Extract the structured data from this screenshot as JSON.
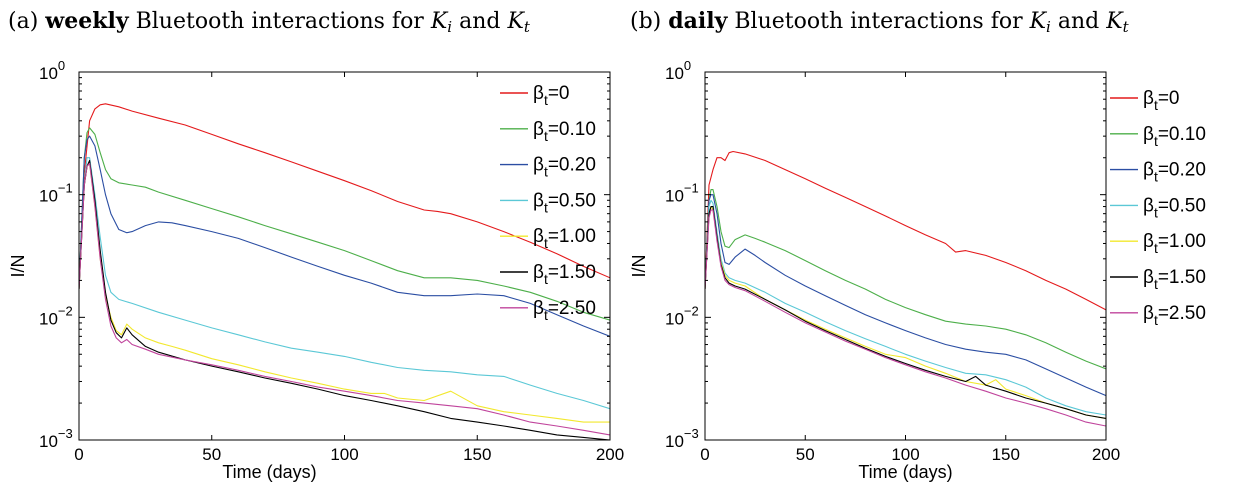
{
  "chart_data": [
    {
      "type": "line",
      "title": {
        "prefix": "(a) ",
        "bold": "weekly",
        "rest": " Bluetooth interactions for ",
        "k1": "K",
        "k1_sub": "i",
        "and": " and ",
        "k2": "K",
        "k2_sub": "t"
      },
      "xlabel": "Time (days)",
      "ylabel": "I/N",
      "xlim": [
        0,
        200
      ],
      "ylim": [
        0.001,
        1
      ],
      "yscale": "log",
      "xticks": [
        "0",
        "50",
        "100",
        "150",
        "200"
      ],
      "yticks": [
        {
          "base": "10",
          "exp": "0"
        },
        {
          "base": "10",
          "exp": "−1"
        },
        {
          "base": "10",
          "exp": "−2"
        },
        {
          "base": "10",
          "exp": "−3"
        }
      ],
      "grid": false,
      "legend_position": "outside-right",
      "series": [
        {
          "name": "β",
          "sub": "t",
          "value": "=0",
          "color": "#e41a1c",
          "x": [
            0,
            2,
            4,
            6,
            8,
            10,
            15,
            20,
            30,
            40,
            50,
            60,
            70,
            80,
            90,
            100,
            110,
            120,
            130,
            135,
            140,
            150,
            160,
            170,
            180,
            190,
            200
          ],
          "y": [
            0.017,
            0.15,
            0.4,
            0.5,
            0.54,
            0.55,
            0.52,
            0.48,
            0.42,
            0.37,
            0.31,
            0.26,
            0.22,
            0.185,
            0.155,
            0.13,
            0.108,
            0.088,
            0.075,
            0.073,
            0.07,
            0.06,
            0.05,
            0.041,
            0.033,
            0.026,
            0.021
          ]
        },
        {
          "name": "β",
          "sub": "t",
          "value": "=0.10",
          "color": "#4daf4a",
          "x": [
            0,
            2,
            3,
            4,
            6,
            8,
            10,
            12,
            15,
            20,
            25,
            30,
            40,
            50,
            60,
            70,
            80,
            90,
            100,
            110,
            120,
            130,
            140,
            150,
            160,
            170,
            180,
            190,
            200
          ],
          "y": [
            0.017,
            0.2,
            0.32,
            0.35,
            0.31,
            0.22,
            0.16,
            0.135,
            0.125,
            0.12,
            0.115,
            0.105,
            0.09,
            0.077,
            0.066,
            0.056,
            0.048,
            0.041,
            0.035,
            0.029,
            0.024,
            0.021,
            0.021,
            0.02,
            0.018,
            0.016,
            0.0135,
            0.011,
            0.0095
          ]
        },
        {
          "name": "β",
          "sub": "t",
          "value": "=0.20",
          "color": "#2b4ea3",
          "x": [
            0,
            2,
            3,
            4,
            6,
            8,
            10,
            12,
            15,
            18,
            20,
            25,
            30,
            35,
            40,
            50,
            60,
            70,
            80,
            90,
            100,
            110,
            120,
            130,
            140,
            150,
            160,
            170,
            180,
            190,
            200
          ],
          "y": [
            0.017,
            0.2,
            0.28,
            0.3,
            0.25,
            0.16,
            0.1,
            0.07,
            0.052,
            0.049,
            0.05,
            0.056,
            0.06,
            0.059,
            0.056,
            0.05,
            0.044,
            0.037,
            0.031,
            0.026,
            0.022,
            0.019,
            0.016,
            0.015,
            0.015,
            0.0155,
            0.015,
            0.013,
            0.0105,
            0.0085,
            0.007
          ]
        },
        {
          "name": "β",
          "sub": "t",
          "value": "=0.50",
          "color": "#5bc8d6",
          "x": [
            0,
            2,
            3,
            4,
            6,
            8,
            10,
            12,
            15,
            20,
            30,
            40,
            50,
            60,
            70,
            80,
            90,
            100,
            110,
            120,
            130,
            140,
            150,
            160,
            170,
            180,
            190,
            200
          ],
          "y": [
            0.017,
            0.12,
            0.2,
            0.2,
            0.1,
            0.045,
            0.022,
            0.016,
            0.014,
            0.013,
            0.011,
            0.0095,
            0.0082,
            0.0072,
            0.0063,
            0.0056,
            0.0052,
            0.0048,
            0.0043,
            0.0039,
            0.0037,
            0.0036,
            0.0034,
            0.0033,
            0.0028,
            0.0024,
            0.0021,
            0.0018
          ]
        },
        {
          "name": "β",
          "sub": "t",
          "value": "=1.00",
          "color": "#f2e82e",
          "x": [
            0,
            2,
            3,
            4,
            6,
            8,
            10,
            12,
            14,
            16,
            18,
            20,
            25,
            30,
            35,
            40,
            50,
            60,
            70,
            80,
            90,
            100,
            110,
            115,
            120,
            130,
            140,
            150,
            160,
            170,
            180,
            190,
            200
          ],
          "y": [
            0.017,
            0.12,
            0.17,
            0.18,
            0.08,
            0.03,
            0.015,
            0.01,
            0.0078,
            0.0072,
            0.0088,
            0.008,
            0.0068,
            0.0062,
            0.0058,
            0.0054,
            0.0046,
            0.0041,
            0.0036,
            0.0032,
            0.0029,
            0.0026,
            0.0024,
            0.0024,
            0.0022,
            0.0021,
            0.0025,
            0.0019,
            0.0017,
            0.0016,
            0.0015,
            0.0014,
            0.0014
          ]
        },
        {
          "name": "β",
          "sub": "t",
          "value": "=1.50",
          "color": "#000000",
          "x": [
            0,
            2,
            3,
            4,
            6,
            8,
            10,
            12,
            14,
            16,
            18,
            20,
            25,
            30,
            40,
            50,
            60,
            70,
            80,
            90,
            100,
            110,
            120,
            130,
            140,
            150,
            160,
            170,
            180,
            190,
            200
          ],
          "y": [
            0.017,
            0.12,
            0.17,
            0.19,
            0.09,
            0.035,
            0.016,
            0.0095,
            0.0075,
            0.0068,
            0.0082,
            0.0072,
            0.0058,
            0.0052,
            0.0045,
            0.004,
            0.0036,
            0.0032,
            0.0029,
            0.0026,
            0.0023,
            0.0021,
            0.0019,
            0.0017,
            0.0015,
            0.0014,
            0.0013,
            0.0012,
            0.0011,
            0.00105,
            0.001
          ]
        },
        {
          "name": "β",
          "sub": "t",
          "value": "=2.50",
          "color": "#c0449c",
          "x": [
            0,
            2,
            3,
            4,
            6,
            8,
            10,
            12,
            14,
            16,
            18,
            20,
            25,
            30,
            40,
            50,
            60,
            70,
            80,
            90,
            100,
            110,
            120,
            130,
            140,
            150,
            160,
            170,
            180,
            190,
            200
          ],
          "y": [
            0.017,
            0.12,
            0.17,
            0.18,
            0.08,
            0.03,
            0.014,
            0.0085,
            0.0068,
            0.0062,
            0.0066,
            0.006,
            0.0055,
            0.005,
            0.0045,
            0.0041,
            0.0037,
            0.0033,
            0.003,
            0.0027,
            0.0025,
            0.0023,
            0.0021,
            0.002,
            0.0019,
            0.0018,
            0.0016,
            0.0014,
            0.0013,
            0.0012,
            0.0011
          ]
        }
      ]
    },
    {
      "type": "line",
      "title": {
        "prefix": "(b) ",
        "bold": "daily",
        "rest": " Bluetooth interactions for ",
        "k1": "K",
        "k1_sub": "i",
        "and": " and ",
        "k2": "K",
        "k2_sub": "t"
      },
      "xlabel": "Time (days)",
      "ylabel": "I/N",
      "xlim": [
        0,
        200
      ],
      "ylim": [
        0.001,
        1
      ],
      "yscale": "log",
      "xticks": [
        "0",
        "50",
        "100",
        "150",
        "200"
      ],
      "yticks": [
        {
          "base": "10",
          "exp": "0"
        },
        {
          "base": "10",
          "exp": "−1"
        },
        {
          "base": "10",
          "exp": "−2"
        },
        {
          "base": "10",
          "exp": "−3"
        }
      ],
      "grid": false,
      "legend_position": "outside-right",
      "series": [
        {
          "name": "β",
          "sub": "t",
          "value": "=0",
          "color": "#e41a1c",
          "x": [
            0,
            2,
            4,
            6,
            8,
            10,
            12,
            14,
            20,
            30,
            40,
            50,
            60,
            70,
            80,
            90,
            100,
            110,
            120,
            125,
            130,
            140,
            150,
            160,
            170,
            180,
            190,
            200
          ],
          "y": [
            0.017,
            0.12,
            0.16,
            0.2,
            0.2,
            0.19,
            0.22,
            0.225,
            0.215,
            0.19,
            0.16,
            0.135,
            0.113,
            0.095,
            0.08,
            0.067,
            0.056,
            0.047,
            0.04,
            0.034,
            0.035,
            0.032,
            0.028,
            0.024,
            0.02,
            0.017,
            0.014,
            0.0115
          ]
        },
        {
          "name": "β",
          "sub": "t",
          "value": "=0.10",
          "color": "#4daf4a",
          "x": [
            0,
            2,
            3,
            4,
            6,
            8,
            10,
            12,
            15,
            20,
            25,
            30,
            40,
            50,
            60,
            70,
            80,
            90,
            100,
            110,
            120,
            130,
            140,
            150,
            160,
            170,
            180,
            190,
            200
          ],
          "y": [
            0.017,
            0.09,
            0.11,
            0.11,
            0.08,
            0.05,
            0.038,
            0.037,
            0.043,
            0.047,
            0.044,
            0.041,
            0.035,
            0.029,
            0.024,
            0.02,
            0.017,
            0.014,
            0.012,
            0.0105,
            0.0093,
            0.0088,
            0.0085,
            0.008,
            0.0072,
            0.0062,
            0.0052,
            0.0044,
            0.0038
          ]
        },
        {
          "name": "β",
          "sub": "t",
          "value": "=0.20",
          "color": "#2b4ea3",
          "x": [
            0,
            2,
            3,
            4,
            6,
            8,
            10,
            12,
            15,
            20,
            25,
            30,
            40,
            50,
            60,
            70,
            80,
            90,
            100,
            110,
            120,
            130,
            140,
            150,
            160,
            170,
            180,
            190,
            200
          ],
          "y": [
            0.017,
            0.09,
            0.1,
            0.1,
            0.07,
            0.04,
            0.028,
            0.027,
            0.031,
            0.036,
            0.032,
            0.028,
            0.022,
            0.018,
            0.015,
            0.0125,
            0.0105,
            0.009,
            0.0078,
            0.0068,
            0.006,
            0.0055,
            0.0052,
            0.005,
            0.0045,
            0.0038,
            0.0032,
            0.0027,
            0.0023
          ]
        },
        {
          "name": "β",
          "sub": "t",
          "value": "=0.50",
          "color": "#5bc8d6",
          "x": [
            0,
            2,
            3,
            4,
            6,
            8,
            10,
            12,
            15,
            20,
            30,
            40,
            50,
            60,
            70,
            80,
            90,
            100,
            110,
            120,
            130,
            140,
            150,
            160,
            170,
            180,
            190,
            200
          ],
          "y": [
            0.017,
            0.08,
            0.09,
            0.085,
            0.05,
            0.03,
            0.023,
            0.021,
            0.02,
            0.019,
            0.016,
            0.013,
            0.011,
            0.0092,
            0.0078,
            0.0067,
            0.0058,
            0.005,
            0.0044,
            0.0039,
            0.0035,
            0.0034,
            0.0031,
            0.0027,
            0.0022,
            0.0019,
            0.0017,
            0.0016
          ]
        },
        {
          "name": "β",
          "sub": "t",
          "value": "=1.00",
          "color": "#f2e82e",
          "x": [
            0,
            2,
            3,
            4,
            6,
            8,
            10,
            12,
            15,
            20,
            30,
            40,
            50,
            60,
            70,
            80,
            90,
            100,
            110,
            120,
            130,
            140,
            145,
            150,
            160,
            170,
            180,
            190,
            200
          ],
          "y": [
            0.017,
            0.07,
            0.08,
            0.075,
            0.045,
            0.028,
            0.022,
            0.02,
            0.019,
            0.018,
            0.014,
            0.0115,
            0.0095,
            0.008,
            0.0068,
            0.0058,
            0.005,
            0.0047,
            0.004,
            0.0035,
            0.003,
            0.0028,
            0.0031,
            0.0026,
            0.0023,
            0.002,
            0.0018,
            0.0016,
            0.0015
          ]
        },
        {
          "name": "β",
          "sub": "t",
          "value": "=1.50",
          "color": "#000000",
          "x": [
            0,
            2,
            3,
            4,
            6,
            8,
            10,
            12,
            15,
            20,
            30,
            40,
            50,
            60,
            70,
            80,
            90,
            100,
            110,
            120,
            130,
            135,
            140,
            150,
            160,
            170,
            180,
            190,
            200
          ],
          "y": [
            0.017,
            0.07,
            0.08,
            0.08,
            0.045,
            0.027,
            0.021,
            0.019,
            0.018,
            0.017,
            0.014,
            0.0115,
            0.0093,
            0.0078,
            0.0066,
            0.0056,
            0.0048,
            0.0042,
            0.0037,
            0.0033,
            0.003,
            0.0033,
            0.0028,
            0.0025,
            0.0022,
            0.002,
            0.0018,
            0.0016,
            0.0015
          ]
        },
        {
          "name": "β",
          "sub": "t",
          "value": "=2.50",
          "color": "#c0449c",
          "x": [
            0,
            2,
            3,
            4,
            6,
            8,
            10,
            12,
            15,
            20,
            30,
            40,
            50,
            60,
            70,
            80,
            90,
            100,
            110,
            120,
            130,
            140,
            150,
            160,
            170,
            180,
            190,
            200
          ],
          "y": [
            0.017,
            0.065,
            0.075,
            0.075,
            0.042,
            0.026,
            0.02,
            0.0185,
            0.0175,
            0.0165,
            0.0135,
            0.011,
            0.009,
            0.0076,
            0.0064,
            0.0055,
            0.0047,
            0.0041,
            0.0036,
            0.0032,
            0.0028,
            0.0025,
            0.0022,
            0.002,
            0.0018,
            0.0016,
            0.0014,
            0.0013
          ]
        }
      ]
    }
  ]
}
